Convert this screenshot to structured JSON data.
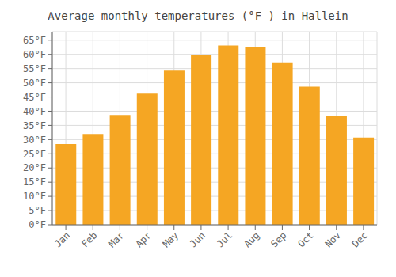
{
  "chart_data": {
    "type": "bar",
    "title": "Average monthly temperatures (°F ) in Hallein",
    "categories": [
      "Jan",
      "Feb",
      "Mar",
      "Apr",
      "May",
      "Jun",
      "Jul",
      "Aug",
      "Sep",
      "Oct",
      "Nov",
      "Dec"
    ],
    "values": [
      28.4,
      32.0,
      38.7,
      46.2,
      54.3,
      59.9,
      63.1,
      62.4,
      57.2,
      48.6,
      38.3,
      30.7
    ],
    "color": "#F5A623",
    "ylim": [
      0,
      68
    ],
    "yticks": [
      {
        "value": 0,
        "label": "0°F"
      },
      {
        "value": 5,
        "label": "5°F"
      },
      {
        "value": 10,
        "label": "10°F"
      },
      {
        "value": 15,
        "label": "15°F"
      },
      {
        "value": 20,
        "label": "20°F"
      },
      {
        "value": 25,
        "label": "25°F"
      },
      {
        "value": 30,
        "label": "30°F"
      },
      {
        "value": 35,
        "label": "35°F"
      },
      {
        "value": 40,
        "label": "40°F"
      },
      {
        "value": 45,
        "label": "45°F"
      },
      {
        "value": 50,
        "label": "50°F"
      },
      {
        "value": 55,
        "label": "55°F"
      },
      {
        "value": 60,
        "label": "60°F"
      },
      {
        "value": 65,
        "label": "65°F"
      }
    ],
    "grid": true
  }
}
